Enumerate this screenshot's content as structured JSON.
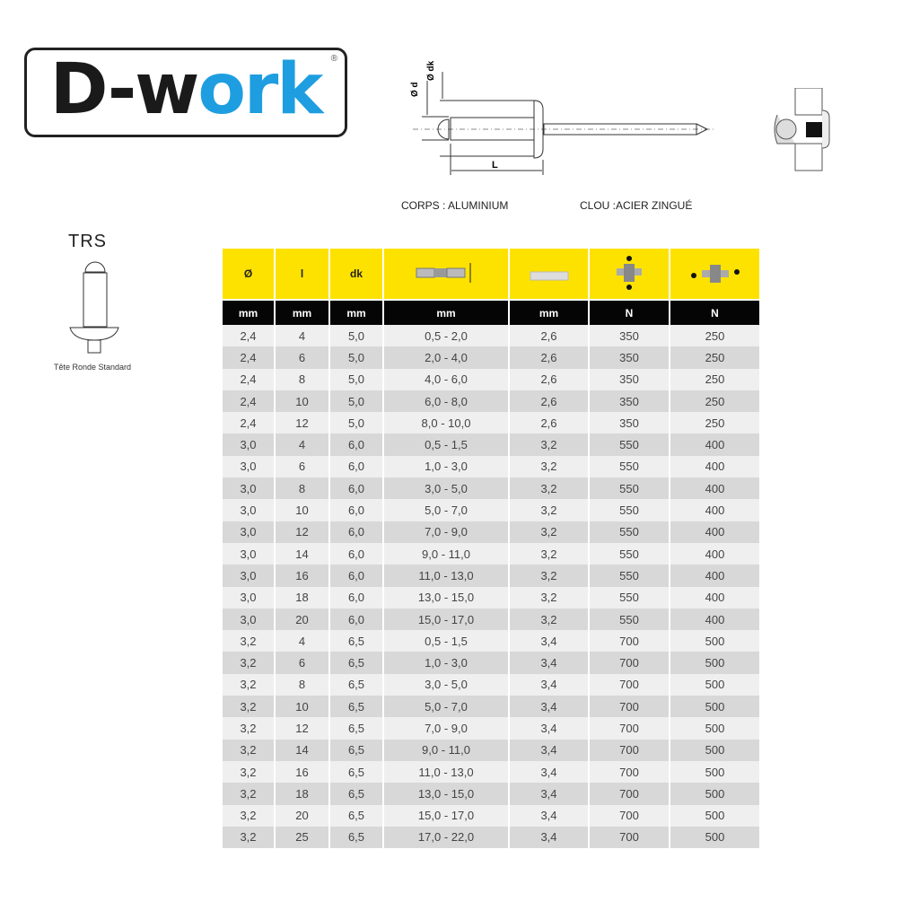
{
  "logo": {
    "text_dark": "D-w",
    "text_blue": "ork",
    "registered": "®",
    "colors": {
      "dark": "#1a1a1a",
      "blue": "#1e9ee0"
    }
  },
  "diagram": {
    "label_d": "Ø d",
    "label_dk": "Ø dk",
    "label_L": "L",
    "body_material": "CORPS : ALUMINIUM",
    "mandrel_material": "CLOU :ACIER ZINGUÉ"
  },
  "head_type": {
    "code": "TRS",
    "name": "Tête Ronde Standard"
  },
  "table": {
    "header_color": "#fde200",
    "headers": [
      "Ø",
      "l",
      "dk",
      "grip-range-icon",
      "drill-hole-icon",
      "shear-strength-icon",
      "tensile-strength-icon"
    ],
    "units": [
      "mm",
      "mm",
      "mm",
      "mm",
      "mm",
      "N",
      "N"
    ],
    "rows": [
      [
        "2,4",
        "4",
        "5,0",
        "0,5 - 2,0",
        "2,6",
        "350",
        "250"
      ],
      [
        "2,4",
        "6",
        "5,0",
        "2,0 - 4,0",
        "2,6",
        "350",
        "250"
      ],
      [
        "2,4",
        "8",
        "5,0",
        "4,0 - 6,0",
        "2,6",
        "350",
        "250"
      ],
      [
        "2,4",
        "10",
        "5,0",
        "6,0 - 8,0",
        "2,6",
        "350",
        "250"
      ],
      [
        "2,4",
        "12",
        "5,0",
        "8,0 - 10,0",
        "2,6",
        "350",
        "250"
      ],
      [
        "3,0",
        "4",
        "6,0",
        "0,5 - 1,5",
        "3,2",
        "550",
        "400"
      ],
      [
        "3,0",
        "6",
        "6,0",
        "1,0 - 3,0",
        "3,2",
        "550",
        "400"
      ],
      [
        "3,0",
        "8",
        "6,0",
        "3,0 - 5,0",
        "3,2",
        "550",
        "400"
      ],
      [
        "3,0",
        "10",
        "6,0",
        "5,0 - 7,0",
        "3,2",
        "550",
        "400"
      ],
      [
        "3,0",
        "12",
        "6,0",
        "7,0 - 9,0",
        "3,2",
        "550",
        "400"
      ],
      [
        "3,0",
        "14",
        "6,0",
        "9,0 - 11,0",
        "3,2",
        "550",
        "400"
      ],
      [
        "3,0",
        "16",
        "6,0",
        "11,0 - 13,0",
        "3,2",
        "550",
        "400"
      ],
      [
        "3,0",
        "18",
        "6,0",
        "13,0 - 15,0",
        "3,2",
        "550",
        "400"
      ],
      [
        "3,0",
        "20",
        "6,0",
        "15,0 - 17,0",
        "3,2",
        "550",
        "400"
      ],
      [
        "3,2",
        "4",
        "6,5",
        "0,5 - 1,5",
        "3,4",
        "700",
        "500"
      ],
      [
        "3,2",
        "6",
        "6,5",
        "1,0 - 3,0",
        "3,4",
        "700",
        "500"
      ],
      [
        "3,2",
        "8",
        "6,5",
        "3,0 - 5,0",
        "3,4",
        "700",
        "500"
      ],
      [
        "3,2",
        "10",
        "6,5",
        "5,0 - 7,0",
        "3,4",
        "700",
        "500"
      ],
      [
        "3,2",
        "12",
        "6,5",
        "7,0 - 9,0",
        "3,4",
        "700",
        "500"
      ],
      [
        "3,2",
        "14",
        "6,5",
        "9,0 - 11,0",
        "3,4",
        "700",
        "500"
      ],
      [
        "3,2",
        "16",
        "6,5",
        "11,0 - 13,0",
        "3,4",
        "700",
        "500"
      ],
      [
        "3,2",
        "18",
        "6,5",
        "13,0 - 15,0",
        "3,4",
        "700",
        "500"
      ],
      [
        "3,2",
        "20",
        "6,5",
        "15,0 - 17,0",
        "3,4",
        "700",
        "500"
      ],
      [
        "3,2",
        "25",
        "6,5",
        "17,0 - 22,0",
        "3,4",
        "700",
        "500"
      ]
    ]
  }
}
